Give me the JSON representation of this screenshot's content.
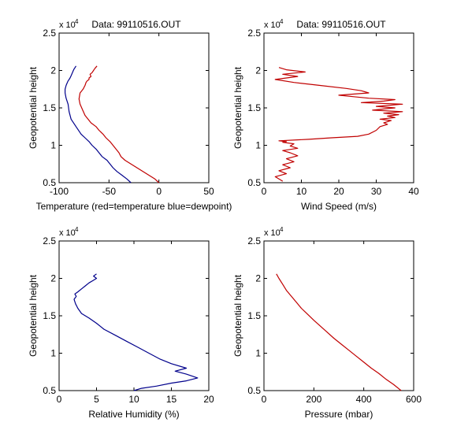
{
  "chart_data": [
    {
      "type": "line",
      "title": "Data: 99110516.OUT",
      "xlabel": "Temperature (red=temperature blue=dewpoint)",
      "ylabel": "Geopotential height",
      "y_multiplier": "x 10",
      "y_multiplier_exp": "4",
      "xlim": [
        -100,
        50
      ],
      "ylim": [
        0.5,
        2.5
      ],
      "xticks": [
        -100,
        -50,
        0,
        50
      ],
      "yticks": [
        0.5,
        1,
        1.5,
        2,
        2.5
      ],
      "xtick_labels": [
        "-100",
        "-50",
        "0",
        "50"
      ],
      "ytick_labels": [
        "0.5",
        "1",
        "1.5",
        "2",
        "2.5"
      ],
      "colors": {
        "temperature": "#c00000",
        "dewpoint": "#00008b"
      },
      "series": [
        {
          "x": [
            0,
            -4,
            -10,
            -16,
            -22,
            -28,
            -34,
            -38,
            -40,
            -43,
            -46,
            -49,
            -53,
            -56,
            -60,
            -63,
            -68,
            -74,
            -79,
            -80,
            -79,
            -76,
            -74,
            -73,
            -72,
            -70,
            -70,
            -68,
            -69,
            -67,
            -66,
            -65,
            -64,
            -62
          ],
          "y": [
            0.5,
            0.55,
            0.6,
            0.65,
            0.7,
            0.75,
            0.8,
            0.85,
            0.9,
            0.95,
            1.0,
            1.05,
            1.1,
            1.15,
            1.2,
            1.25,
            1.3,
            1.4,
            1.55,
            1.62,
            1.7,
            1.75,
            1.8,
            1.84,
            1.86,
            1.88,
            1.9,
            1.92,
            1.95,
            1.97,
            1.99,
            2.01,
            2.03,
            2.06
          ]
        },
        {
          "x": [
            -28,
            -32,
            -37,
            -42,
            -46,
            -49,
            -52,
            -57,
            -60,
            -63,
            -67,
            -70,
            -74,
            -78,
            -83,
            -88,
            -90,
            -91,
            -93,
            -94,
            -94,
            -93,
            -92,
            -91,
            -90,
            -89,
            -88,
            -87,
            -86,
            -85,
            -84,
            -83
          ],
          "y": [
            0.5,
            0.55,
            0.6,
            0.65,
            0.7,
            0.75,
            0.8,
            0.85,
            0.9,
            0.95,
            1.0,
            1.05,
            1.1,
            1.15,
            1.25,
            1.35,
            1.45,
            1.55,
            1.63,
            1.7,
            1.75,
            1.8,
            1.83,
            1.86,
            1.88,
            1.9,
            1.93,
            1.96,
            1.99,
            2.02,
            2.04,
            2.06
          ]
        }
      ]
    },
    {
      "type": "line",
      "title": "Data: 99110516.OUT",
      "xlabel": "Wind Speed (m/s)",
      "ylabel": "Geopotential height",
      "y_multiplier": "x 10",
      "y_multiplier_exp": "4",
      "xlim": [
        0,
        40
      ],
      "ylim": [
        0.5,
        2.5
      ],
      "xticks": [
        0,
        10,
        20,
        30,
        40
      ],
      "yticks": [
        0.5,
        1,
        1.5,
        2,
        2.5
      ],
      "xtick_labels": [
        "0",
        "10",
        "20",
        "30",
        "40"
      ],
      "ytick_labels": [
        "0.5",
        "1",
        "1.5",
        "2",
        "2.5"
      ],
      "colors": {
        "wind": "#c00000"
      },
      "series": [
        {
          "x": [
            5,
            3,
            6,
            4,
            7,
            5,
            8,
            6,
            9,
            7,
            5,
            9,
            7,
            8,
            5,
            6,
            4,
            12,
            18,
            25,
            28,
            30,
            31,
            33,
            32,
            34,
            31,
            35,
            33,
            36,
            32,
            37,
            29,
            33,
            35,
            30,
            37,
            26,
            32,
            35,
            28,
            24,
            20,
            28,
            26,
            22,
            15,
            8,
            3,
            9,
            5,
            11,
            6,
            4
          ],
          "y": [
            0.52,
            0.58,
            0.62,
            0.66,
            0.7,
            0.74,
            0.78,
            0.82,
            0.86,
            0.9,
            0.93,
            0.96,
            0.99,
            1.02,
            1.04,
            1.05,
            1.06,
            1.08,
            1.1,
            1.12,
            1.15,
            1.2,
            1.25,
            1.28,
            1.3,
            1.33,
            1.35,
            1.37,
            1.39,
            1.41,
            1.43,
            1.45,
            1.47,
            1.49,
            1.5,
            1.52,
            1.55,
            1.57,
            1.59,
            1.61,
            1.63,
            1.65,
            1.67,
            1.7,
            1.73,
            1.76,
            1.8,
            1.84,
            1.88,
            1.92,
            1.95,
            1.98,
            2.01,
            2.04
          ]
        }
      ]
    },
    {
      "type": "line",
      "title": "",
      "xlabel": "Relative Humidity (%)",
      "ylabel": "Geopotential height",
      "y_multiplier": "x 10",
      "y_multiplier_exp": "4",
      "xlim": [
        0,
        20
      ],
      "ylim": [
        0.5,
        2.5
      ],
      "xticks": [
        0,
        5,
        10,
        15,
        20
      ],
      "yticks": [
        0.5,
        1,
        1.5,
        2,
        2.5
      ],
      "xtick_labels": [
        "0",
        "5",
        "10",
        "15",
        "20"
      ],
      "ytick_labels": [
        "0.5",
        "1",
        "1.5",
        "2",
        "2.5"
      ],
      "colors": {
        "humidity": "#00008b"
      },
      "series": [
        {
          "x": [
            10,
            11,
            13,
            15,
            17,
            18.5,
            17,
            15.5,
            17,
            15,
            13.5,
            12,
            10.5,
            9,
            7.5,
            6,
            5,
            4,
            3,
            2.5,
            2.2,
            2,
            2.3,
            2.1,
            2.5,
            3,
            3.5,
            4,
            4.5,
            5,
            4.6,
            5
          ],
          "y": [
            0.5,
            0.53,
            0.56,
            0.6,
            0.63,
            0.67,
            0.72,
            0.76,
            0.8,
            0.86,
            0.92,
            1.0,
            1.08,
            1.16,
            1.24,
            1.32,
            1.4,
            1.47,
            1.53,
            1.6,
            1.66,
            1.72,
            1.76,
            1.79,
            1.82,
            1.86,
            1.9,
            1.94,
            1.97,
            2.0,
            2.03,
            2.06
          ]
        }
      ]
    },
    {
      "type": "line",
      "title": "",
      "xlabel": "Pressure (mbar)",
      "ylabel": "Geopotential height",
      "y_multiplier": "x 10",
      "y_multiplier_exp": "4",
      "xlim": [
        0,
        600
      ],
      "ylim": [
        0.5,
        2.5
      ],
      "xticks": [
        0,
        200,
        400,
        600
      ],
      "yticks": [
        0.5,
        1,
        1.5,
        2,
        2.5
      ],
      "xtick_labels": [
        "0",
        "200",
        "400",
        "600"
      ],
      "ytick_labels": [
        "0.5",
        "1",
        "1.5",
        "2",
        "2.5"
      ],
      "colors": {
        "pressure": "#c00000"
      },
      "series": [
        {
          "x": [
            550,
            520,
            490,
            460,
            430,
            400,
            370,
            340,
            310,
            280,
            250,
            220,
            200,
            175,
            150,
            130,
            110,
            90,
            75,
            60,
            50
          ],
          "y": [
            0.5,
            0.58,
            0.65,
            0.73,
            0.8,
            0.88,
            0.96,
            1.04,
            1.12,
            1.2,
            1.29,
            1.38,
            1.44,
            1.52,
            1.6,
            1.68,
            1.76,
            1.84,
            1.92,
            2.0,
            2.06
          ]
        }
      ]
    }
  ]
}
